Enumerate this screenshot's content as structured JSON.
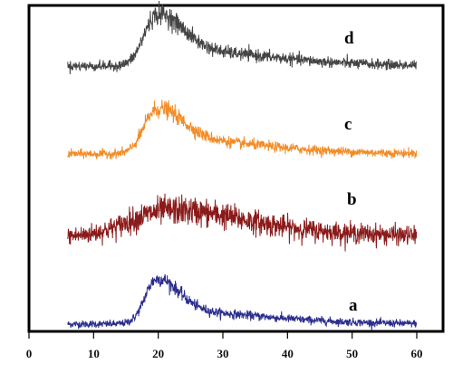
{
  "chart_data": {
    "type": "line",
    "title": "",
    "xlabel": "",
    "ylabel": "",
    "xlim": [
      0,
      62
    ],
    "x_ticks": [
      0,
      10,
      20,
      30,
      40,
      50,
      60
    ],
    "x_tick_labels": [
      "0",
      "10",
      "20",
      "30",
      "40",
      "50",
      "60"
    ],
    "y_ticks_shown": false,
    "grid": false,
    "legend": "none",
    "series": [
      {
        "label": "a",
        "color": "#2B2E8C",
        "offset": 0,
        "x_range": [
          6,
          60
        ],
        "baseline": 6,
        "noise": 2.5,
        "peaks": [
          {
            "center": 19.5,
            "height": 40,
            "width_left": 1.6,
            "width_right": 3.5
          },
          {
            "center": 22,
            "height": 12,
            "width_left": 3,
            "width_right": 10
          },
          {
            "center": 36,
            "height": 4,
            "width_left": 8,
            "width_right": 12
          }
        ]
      },
      {
        "label": "b",
        "color": "#8B1A1A",
        "offset": 100,
        "x_range": [
          6,
          60
        ],
        "baseline": 8,
        "noise": 6,
        "peaks": [
          {
            "center": 21.5,
            "height": 28,
            "width_left": 6,
            "width_right": 10
          },
          {
            "center": 38,
            "height": 6,
            "width_left": 10,
            "width_right": 14
          }
        ]
      },
      {
        "label": "c",
        "color": "#F28C28",
        "offset": 200,
        "x_range": [
          6,
          60
        ],
        "baseline": 5,
        "noise": 3,
        "peaks": [
          {
            "center": 19.5,
            "height": 38,
            "width_left": 1.8,
            "width_right": 4
          },
          {
            "center": 22,
            "height": 14,
            "width_left": 3,
            "width_right": 10
          },
          {
            "center": 36,
            "height": 4,
            "width_left": 8,
            "width_right": 12
          }
        ]
      },
      {
        "label": "d",
        "color": "#444444",
        "offset": 300,
        "x_range": [
          6,
          60
        ],
        "baseline": 8,
        "noise": 3.2,
        "peaks": [
          {
            "center": 19.5,
            "height": 44,
            "width_left": 1.8,
            "width_right": 4
          },
          {
            "center": 22,
            "height": 16,
            "width_left": 3,
            "width_right": 11
          },
          {
            "center": 38,
            "height": 4,
            "width_left": 8,
            "width_right": 12
          }
        ]
      }
    ]
  }
}
